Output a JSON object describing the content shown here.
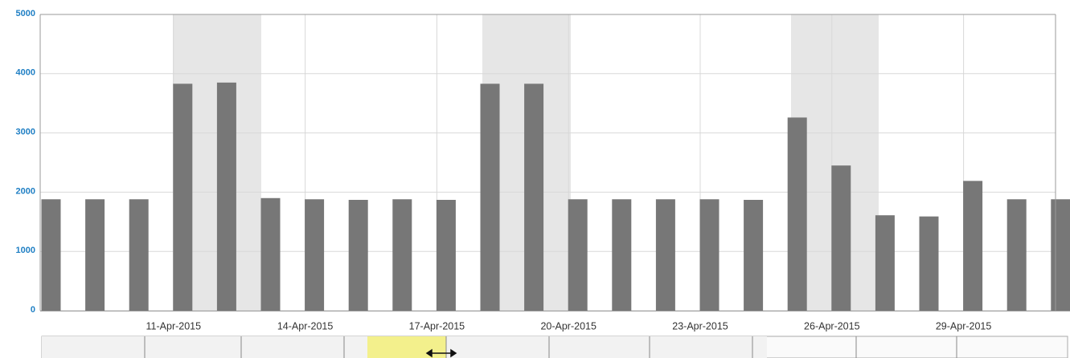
{
  "chart_data": {
    "type": "bar",
    "categories": [
      null,
      null,
      null,
      "11-Apr-2015",
      null,
      null,
      "14-Apr-2015",
      null,
      null,
      "17-Apr-2015",
      null,
      null,
      "20-Apr-2015",
      null,
      null,
      "23-Apr-2015",
      null,
      null,
      "26-Apr-2015",
      null,
      null,
      "29-Apr-2015",
      null,
      null
    ],
    "values": [
      1880,
      1880,
      1880,
      3830,
      3850,
      1900,
      1880,
      1870,
      1880,
      1870,
      3830,
      3830,
      1880,
      1880,
      1880,
      1880,
      1870,
      3260,
      2450,
      1610,
      1590,
      2190,
      1880,
      1880
    ],
    "color": "#777777",
    "ylim": [
      0,
      5000
    ],
    "yticks": [
      0,
      1000,
      2000,
      3000,
      4000,
      5000
    ],
    "grid": true
  }
}
